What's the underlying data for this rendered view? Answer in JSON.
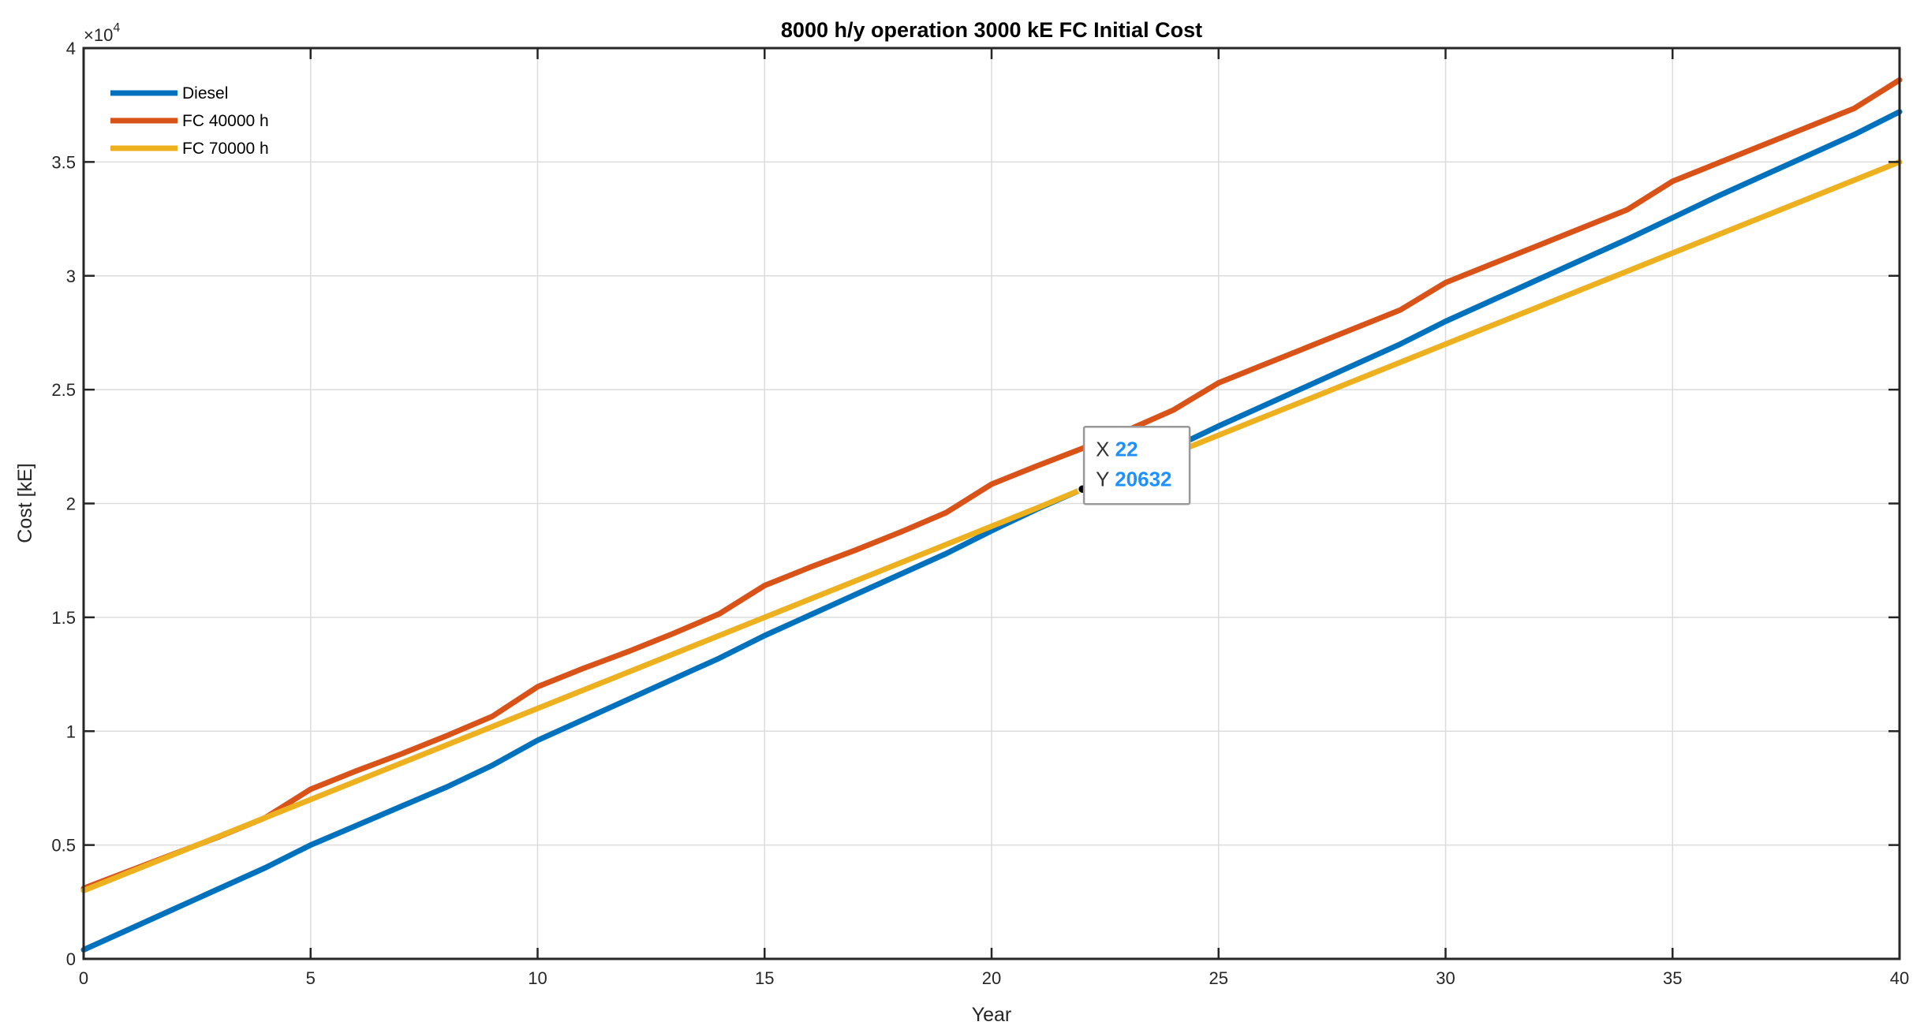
{
  "chart_data": {
    "type": "line",
    "title": "8000 h/y operation 3000 kE FC Initial Cost",
    "xlabel": "Year",
    "ylabel": "Cost [kE]",
    "xlim": [
      0,
      40
    ],
    "ylim": [
      0,
      40000
    ],
    "x_ticks": [
      0,
      5,
      10,
      15,
      20,
      25,
      30,
      35,
      40
    ],
    "x_tick_labels": [
      "0",
      "5",
      "10",
      "15",
      "20",
      "25",
      "30",
      "35",
      "40"
    ],
    "y_ticks": [
      0,
      5000,
      10000,
      15000,
      20000,
      25000,
      30000,
      35000,
      40000
    ],
    "y_tick_labels": [
      "0",
      "0.5",
      "1",
      "1.5",
      "2",
      "2.5",
      "3",
      "3.5",
      "4"
    ],
    "y_exponent_label": "×10",
    "y_exponent_power": "4",
    "grid": true,
    "legend_position": "top-left",
    "x": [
      0,
      1,
      2,
      3,
      4,
      5,
      6,
      7,
      8,
      9,
      10,
      11,
      12,
      13,
      14,
      15,
      16,
      17,
      18,
      19,
      20,
      21,
      22,
      23,
      24,
      25,
      26,
      27,
      28,
      29,
      30,
      31,
      32,
      33,
      34,
      35,
      36,
      37,
      38,
      39,
      40
    ],
    "series": [
      {
        "name": "Diesel",
        "color": "#0072BD",
        "values": [
          400,
          1300,
          2200,
          3100,
          4000,
          5000,
          5850,
          6700,
          7550,
          8500,
          9600,
          10500,
          11400,
          12300,
          13200,
          14200,
          15100,
          16000,
          16900,
          17800,
          18800,
          19750,
          20632,
          21550,
          22450,
          23400,
          24300,
          25200,
          26100,
          27000,
          28000,
          28900,
          29800,
          30700,
          31600,
          32550,
          33500,
          34400,
          35300,
          36200,
          37200
        ]
      },
      {
        "name": "FC 40000 h",
        "color": "#D95319",
        "values": [
          3100,
          3860,
          4620,
          5380,
          6200,
          7450,
          8250,
          9000,
          9800,
          10650,
          11950,
          12750,
          13500,
          14300,
          15150,
          16400,
          17200,
          17950,
          18750,
          19600,
          20850,
          21650,
          22420,
          23220,
          24100,
          25300,
          26100,
          26900,
          27700,
          28500,
          29700,
          30500,
          31300,
          32100,
          32900,
          34150,
          34950,
          35750,
          36550,
          37350,
          38600
        ]
      },
      {
        "name": "FC 70000 h",
        "color": "#EDB120",
        "values": [
          3000,
          3800,
          4600,
          5400,
          6200,
          7000,
          7800,
          8600,
          9400,
          10200,
          11000,
          11800,
          12600,
          13400,
          14200,
          15000,
          15800,
          16600,
          17400,
          18200,
          19000,
          19800,
          20632,
          21400,
          22200,
          23000,
          23800,
          24600,
          25400,
          26200,
          27000,
          27800,
          28600,
          29400,
          30200,
          31000,
          31800,
          32600,
          33400,
          34200,
          35000
        ]
      }
    ],
    "datatip": {
      "x_label": "X",
      "x_value": "22",
      "y_label": "Y",
      "y_value": "20632",
      "x": 22,
      "y": 20632,
      "value_color": "#1E90FF"
    }
  }
}
